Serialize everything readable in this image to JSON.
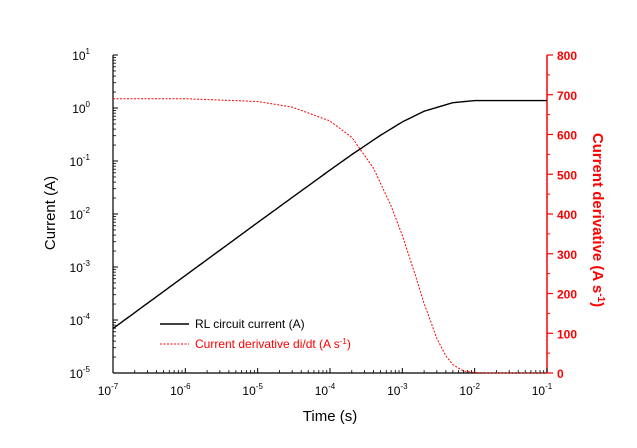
{
  "chart_data": {
    "type": "line",
    "xlabel": "Time (s)",
    "ylabel_left": "Current (A)",
    "ylabel_right_main": "Current derivative (A s",
    "ylabel_right_sup": "-1",
    "ylabel_right_close": ")",
    "x_scale": "log",
    "xlim": [
      1e-07,
      0.1
    ],
    "left_scale": "log",
    "ylim_left": [
      1e-05,
      10
    ],
    "ylim_right": [
      0,
      800
    ],
    "grid": false,
    "legend_position": "lower-left",
    "x_ticks": [
      {
        "base": "10",
        "exp": "-7",
        "value": 1e-07
      },
      {
        "base": "10",
        "exp": "-6",
        "value": 1e-06
      },
      {
        "base": "10",
        "exp": "-5",
        "value": 1e-05
      },
      {
        "base": "10",
        "exp": "-4",
        "value": 0.0001
      },
      {
        "base": "10",
        "exp": "-3",
        "value": 0.001
      },
      {
        "base": "10",
        "exp": "-2",
        "value": 0.01
      },
      {
        "base": "10",
        "exp": "-1",
        "value": 0.1
      }
    ],
    "left_ticks": [
      {
        "base": "10",
        "exp": "1",
        "value": 10
      },
      {
        "base": "10",
        "exp": "0",
        "value": 1
      },
      {
        "base": "10",
        "exp": "-1",
        "value": 0.1
      },
      {
        "base": "10",
        "exp": "-2",
        "value": 0.01
      },
      {
        "base": "10",
        "exp": "-3",
        "value": 0.001
      },
      {
        "base": "10",
        "exp": "-4",
        "value": 0.0001
      },
      {
        "base": "10",
        "exp": "-5",
        "value": 1e-05
      }
    ],
    "right_ticks": [
      "0",
      "100",
      "200",
      "300",
      "400",
      "500",
      "600",
      "700",
      "800"
    ],
    "series": [
      {
        "name": "RL circuit current (A)",
        "axis": "left",
        "color": "#000000",
        "style": "solid",
        "x": [
          1e-07,
          3e-07,
          1e-06,
          3e-06,
          1e-05,
          3e-05,
          0.0001,
          0.0002,
          0.0005,
          0.001,
          0.002,
          0.005,
          0.01,
          0.02,
          0.05,
          0.1
        ],
        "y": [
          6.9e-05,
          0.000207,
          0.00069,
          0.00207,
          0.0069,
          0.0205,
          0.0675,
          0.132,
          0.306,
          0.546,
          0.87,
          1.26,
          1.38,
          1.38,
          1.38,
          1.38
        ]
      },
      {
        "name_main": "Current derivative di/dt (A s",
        "name_sup": "-1",
        "name_close": ")",
        "axis": "right",
        "color": "#ff0000",
        "style": "dashed",
        "x": [
          1e-07,
          1e-06,
          1e-05,
          3e-05,
          0.0001,
          0.0002,
          0.0004,
          0.0007,
          0.001,
          0.0015,
          0.002,
          0.003,
          0.004,
          0.005,
          0.007,
          0.01,
          0.015,
          0.1
        ],
        "y": [
          690,
          690,
          683,
          669,
          634,
          593,
          515,
          420,
          346,
          248,
          175,
          87,
          43,
          21,
          5,
          1,
          0,
          0
        ]
      }
    ]
  }
}
